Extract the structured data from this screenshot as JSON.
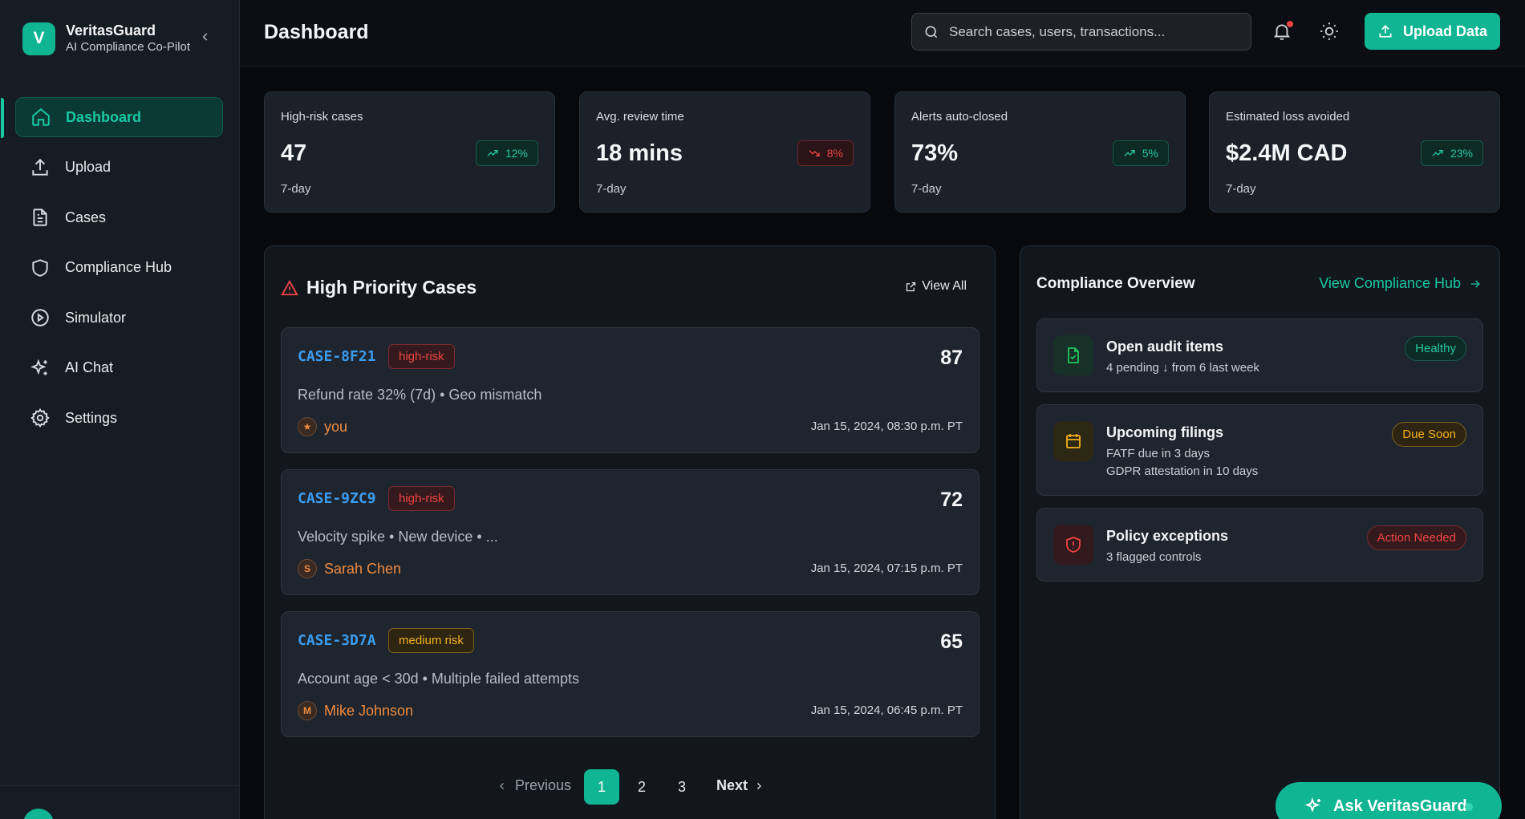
{
  "brand": {
    "logo_letter": "V",
    "name": "VeritasGuard",
    "subtitle": "AI Compliance Co-Pilot"
  },
  "nav": [
    {
      "label": "Dashboard",
      "icon": "home-icon",
      "active": true
    },
    {
      "label": "Upload",
      "icon": "upload-icon"
    },
    {
      "label": "Cases",
      "icon": "document-icon"
    },
    {
      "label": "Compliance Hub",
      "icon": "shield-icon"
    },
    {
      "label": "Simulator",
      "icon": "play-circle-icon"
    },
    {
      "label": "AI Chat",
      "icon": "sparkles-icon"
    },
    {
      "label": "Settings",
      "icon": "gear-icon"
    }
  ],
  "header": {
    "title": "Dashboard",
    "search_placeholder": "Search cases, users, transactions...",
    "upload_label": "Upload Data"
  },
  "stats": [
    {
      "label": "High-risk cases",
      "value": "47",
      "period": "7-day",
      "change": "12%",
      "trend": "up"
    },
    {
      "label": "Avg. review time",
      "value": "18 mins",
      "period": "7-day",
      "change": "8%",
      "trend": "down"
    },
    {
      "label": "Alerts auto-closed",
      "value": "73%",
      "period": "7-day",
      "change": "5%",
      "trend": "up"
    },
    {
      "label": "Estimated loss avoided",
      "value": "$2.4M CAD",
      "period": "7-day",
      "change": "23%",
      "trend": "up"
    }
  ],
  "cases_panel": {
    "title": "High Priority Cases",
    "view_all": "View All",
    "cases": [
      {
        "id": "CASE-8F21",
        "risk": "high-risk",
        "score": "87",
        "desc": "Refund rate 32% (7d) • Geo mismatch",
        "user": "you",
        "avatar": "★",
        "time": "Jan 15, 2024, 08:30 p.m. PT"
      },
      {
        "id": "CASE-9ZC9",
        "risk": "high-risk",
        "score": "72",
        "desc": "Velocity spike • New device • ...",
        "user": "Sarah Chen",
        "avatar": "S",
        "time": "Jan 15, 2024, 07:15 p.m. PT"
      },
      {
        "id": "CASE-3D7A",
        "risk": "medium risk",
        "score": "65",
        "desc": "Account age < 30d • Multiple failed attempts",
        "user": "Mike Johnson",
        "avatar": "M",
        "time": "Jan 15, 2024, 06:45 p.m. PT"
      }
    ],
    "pagination": {
      "previous": "Previous",
      "pages": [
        "1",
        "2",
        "3"
      ],
      "current": "1",
      "next": "Next"
    }
  },
  "compliance": {
    "title": "Compliance Overview",
    "link": "View Compliance Hub",
    "items": [
      {
        "name": "Open audit items",
        "lines": [
          "4 pending  ↓ from 6 last week"
        ],
        "badge": "Healthy",
        "status": "green",
        "icon": "file-check-icon"
      },
      {
        "name": "Upcoming filings",
        "lines": [
          "FATF due in 3 days",
          "GDPR attestation in 10 days"
        ],
        "badge": "Due Soon",
        "status": "amber",
        "icon": "calendar-icon"
      },
      {
        "name": "Policy exceptions",
        "lines": [
          "3 flagged controls"
        ],
        "badge": "Action Needed",
        "status": "red",
        "icon": "shield-alert-icon"
      }
    ]
  },
  "ask_button": "Ask VeritasGuard",
  "colors": {
    "accent": "#10b593",
    "danger": "#ef4444",
    "warning": "#f5b21a",
    "link": "#3b9cf0"
  }
}
